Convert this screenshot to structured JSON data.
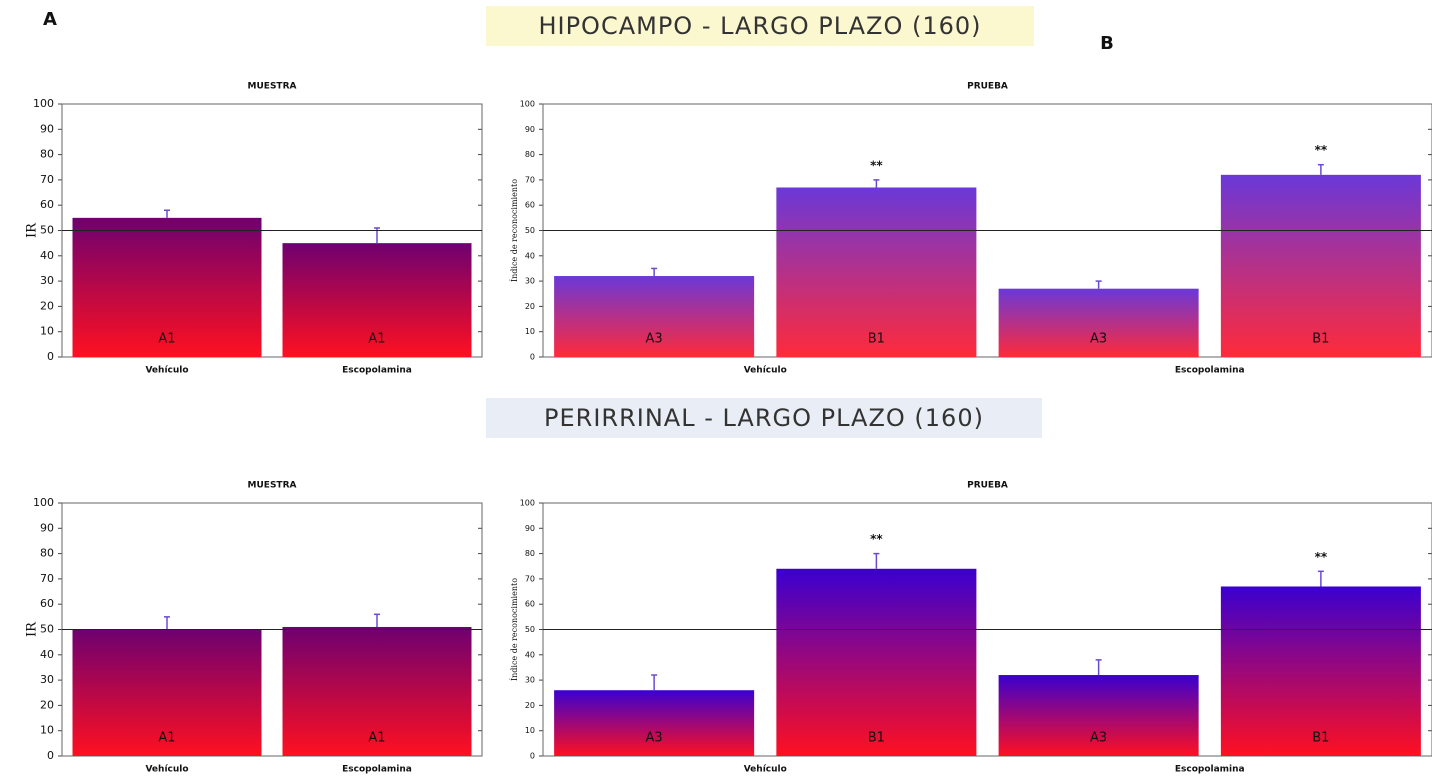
{
  "panel_labels": [
    "A",
    "B"
  ],
  "sections": [
    "HIPOCAMPO - LARGO PLAZO (160)",
    "PERIRRINAL - LARGO PLAZO (160)"
  ],
  "chart_data": [
    {
      "type": "bar",
      "title": "MUESTRA",
      "y_label": "IR",
      "groups": [
        "Vehículo",
        "Escopolamina"
      ],
      "bar_labels": [
        "A1",
        "A1"
      ],
      "values": [
        55,
        45
      ],
      "errors": [
        3,
        6
      ],
      "ylim": [
        0,
        100
      ],
      "yticks": [
        0,
        10,
        20,
        30,
        40,
        50,
        60,
        70,
        80,
        90,
        100
      ],
      "reference_line": 50,
      "gradient": [
        "#ff1020",
        "#6e0070"
      ]
    },
    {
      "type": "bar",
      "title": "PRUEBA",
      "y_label": "Índice de reconocimiento",
      "groups": [
        "Vehículo",
        "Escopolamina"
      ],
      "bar_labels": [
        "A3",
        "B1",
        "A3",
        "B1"
      ],
      "values": [
        32,
        67,
        27,
        72
      ],
      "errors": [
        3,
        3,
        3,
        4
      ],
      "annotations": [
        null,
        "**",
        null,
        "**"
      ],
      "ylim": [
        0,
        100
      ],
      "yticks": [
        0,
        10,
        20,
        30,
        40,
        50,
        60,
        70,
        80,
        90,
        100
      ],
      "reference_line": 50,
      "gradient": [
        "#ff2a3a",
        "#6a38d8"
      ]
    },
    {
      "type": "bar",
      "title": "MUESTRA",
      "y_label": "IR",
      "groups": [
        "Vehículo",
        "Escopolamina"
      ],
      "bar_labels": [
        "A1",
        "A1"
      ],
      "values": [
        50,
        51
      ],
      "errors": [
        5,
        5
      ],
      "ylim": [
        0,
        100
      ],
      "yticks": [
        0,
        10,
        20,
        30,
        40,
        50,
        60,
        70,
        80,
        90,
        100
      ],
      "reference_line": 50,
      "gradient": [
        "#ff1020",
        "#6e0070"
      ]
    },
    {
      "type": "bar",
      "title": "PRUEBA",
      "y_label": "Índice de reconocimiento",
      "groups": [
        "Vehículo",
        "Escopolamina"
      ],
      "bar_labels": [
        "A3",
        "B1",
        "A3",
        "B1"
      ],
      "values": [
        26,
        74,
        32,
        67
      ],
      "errors": [
        6,
        6,
        6,
        6
      ],
      "annotations": [
        null,
        "**",
        null,
        "**"
      ],
      "ylim": [
        0,
        100
      ],
      "yticks": [
        0,
        10,
        20,
        30,
        40,
        50,
        60,
        70,
        80,
        90,
        100
      ],
      "reference_line": 50,
      "gradient": [
        "#ff1020",
        "#3a00d0"
      ]
    }
  ]
}
